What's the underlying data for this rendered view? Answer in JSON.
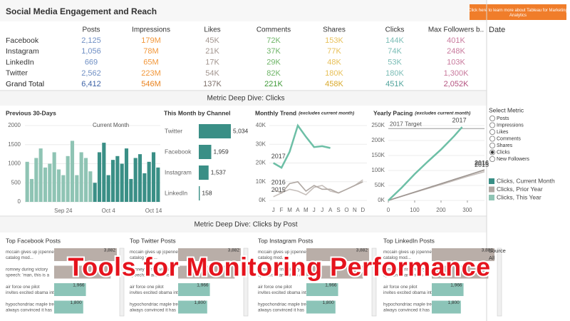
{
  "header": {
    "title": "Social Media Engagement and Reach",
    "button": "Click here to learn more about Tableau for Marketing Analytics",
    "date_label": "Date"
  },
  "table": {
    "columns": [
      "Posts",
      "Impressions",
      "Likes",
      "Comments",
      "Shares",
      "Clicks",
      "Max Followers b.."
    ],
    "column_colors": [
      "#6f8fc4",
      "#f2973a",
      "#a39690",
      "#6fb568",
      "#e8c15a",
      "#7bbdb6",
      "#c97a9d"
    ],
    "total_colors": [
      "#3d62a6",
      "#e8811c",
      "#7d706a",
      "#3f9a38",
      "#d9a92a",
      "#4fa39b",
      "#b4527f"
    ],
    "rows": [
      {
        "label": "Facebook",
        "cells": [
          "2,125",
          "179M",
          "45K",
          "72K",
          "153K",
          "144K",
          "401K"
        ]
      },
      {
        "label": "Instagram",
        "cells": [
          "1,056",
          "78M",
          "21K",
          "37K",
          "77K",
          "74K",
          "248K"
        ]
      },
      {
        "label": "LinkedIn",
        "cells": [
          "669",
          "65M",
          "17K",
          "29K",
          "48K",
          "53K",
          "103K"
        ]
      },
      {
        "label": "Twitter",
        "cells": [
          "2,562",
          "223M",
          "54K",
          "82K",
          "180K",
          "180K",
          "1,300K"
        ]
      },
      {
        "label": "Grand Total",
        "cells": [
          "6,412",
          "546M",
          "137K",
          "221K",
          "458K",
          "451K",
          "2,052K"
        ]
      }
    ]
  },
  "sections": [
    "Metric Deep Dive: Clicks",
    "Metric Deep Dive: Clicks by Post"
  ],
  "chart_data": [
    {
      "type": "bar",
      "title": "Previous 30-Days",
      "annotation": "Current Month",
      "categories": [
        null,
        null,
        null,
        null,
        null,
        null,
        null,
        null,
        "Sep 24",
        null,
        null,
        null,
        null,
        null,
        null,
        null,
        null,
        null,
        "Oct 4",
        null,
        null,
        null,
        null,
        null,
        null,
        null,
        null,
        null,
        "Oct 14",
        null
      ],
      "series": [
        {
          "color": "#8fc4b4",
          "values": [
            1050,
            600,
            1150,
            1400,
            900,
            1000,
            1300,
            850,
            700,
            1200,
            1600,
            700,
            1300,
            1150,
            800,
            null,
            null,
            null,
            null,
            null,
            null,
            null,
            null,
            null,
            null,
            null,
            null,
            null,
            null,
            null
          ]
        },
        {
          "color": "#3a8f86",
          "values": [
            null,
            null,
            null,
            null,
            null,
            null,
            null,
            null,
            null,
            null,
            null,
            null,
            null,
            null,
            null,
            500,
            1300,
            1550,
            700,
            1100,
            1200,
            1000,
            1400,
            600,
            1150,
            1250,
            750,
            1050,
            1300,
            900
          ]
        }
      ],
      "ylim": [
        0,
        2000
      ],
      "yticks": [
        0,
        500,
        1000,
        1500,
        2000
      ],
      "grid": true
    },
    {
      "type": "hbar",
      "title": "This Month by Channel",
      "categories": [
        "Twitter",
        "Facebook",
        "Instagram",
        "LinkedIn"
      ],
      "values": [
        5034,
        1959,
        1537,
        158
      ],
      "value_labels": [
        "5,034",
        "1,959",
        "1,537",
        "158"
      ],
      "color": "#3a8f86"
    },
    {
      "type": "line",
      "title": "Monthly Trend",
      "subtitle": "(excludes current month)",
      "categories": [
        "J",
        "F",
        "M",
        "A",
        "M",
        "J",
        "J",
        "A",
        "S",
        "O",
        "N",
        "D"
      ],
      "series": [
        {
          "name": "2017",
          "color": "#6dbfa6",
          "values": [
            20000,
            17500,
            26000,
            40000,
            34000,
            28500,
            29000,
            28000,
            null,
            null,
            null,
            null
          ]
        },
        {
          "name": "2016",
          "color": "#b0a8a3",
          "values": [
            6000,
            4000,
            9000,
            10000,
            5000,
            8000,
            6000,
            6000,
            4000,
            6000,
            8000,
            10000
          ]
        },
        {
          "name": "2015",
          "color": "#c6bfbb",
          "values": [
            2000,
            4000,
            6000,
            5000,
            3000,
            7000,
            8000,
            5000,
            4000,
            6000,
            8000,
            11000
          ]
        }
      ],
      "ylim": [
        0,
        40000
      ],
      "yticks": [
        {
          "value": 0,
          "label": "0K"
        },
        {
          "value": 10000,
          "label": "10K"
        },
        {
          "value": 20000,
          "label": "20K"
        },
        {
          "value": 30000,
          "label": "30K"
        },
        {
          "value": 40000,
          "label": "40K"
        }
      ],
      "grid": true
    },
    {
      "type": "line",
      "title": "Yearly Pacing",
      "subtitle": "(excludes current month)",
      "target": 240000,
      "target_label": "2017 Target",
      "series": [
        {
          "name": "2017",
          "color": "#6dbfa6",
          "x": [
            0,
            50,
            100,
            150,
            200,
            250,
            280
          ],
          "values": [
            0,
            42000,
            88000,
            130000,
            170000,
            215000,
            245000
          ]
        },
        {
          "name": "2016",
          "color": "#9c948f",
          "x": [
            0,
            100,
            200,
            300,
            365
          ],
          "values": [
            0,
            28000,
            56000,
            84000,
            102000
          ]
        },
        {
          "name": "2015",
          "color": "#c6bfbb",
          "x": [
            0,
            100,
            200,
            300,
            365
          ],
          "values": [
            0,
            27000,
            53000,
            80000,
            96000
          ]
        }
      ],
      "xlim": [
        0,
        365
      ],
      "xticks": [
        0,
        100,
        200,
        300
      ],
      "ylim": [
        0,
        250000
      ],
      "yticks": [
        {
          "value": 0,
          "label": "0K"
        },
        {
          "value": 50000,
          "label": "50K"
        },
        {
          "value": 100000,
          "label": "100K"
        },
        {
          "value": 150000,
          "label": "150K"
        },
        {
          "value": 200000,
          "label": "200K"
        },
        {
          "value": 250000,
          "label": "250K"
        }
      ],
      "grid": true
    }
  ],
  "select_metric": {
    "title": "Select Metric",
    "options": [
      "Posts",
      "Impressions",
      "Likes",
      "Comments",
      "Shares",
      "Clicks",
      "New Followers"
    ],
    "selected": 5
  },
  "legend": [
    {
      "name": "Clicks, Current Month",
      "color": "#3a8f86"
    },
    {
      "name": "Clicks, Prior Year",
      "color": "#b0a8a3"
    },
    {
      "name": "Clicks, This Year",
      "color": "#8fc4b4"
    }
  ],
  "top_posts": [
    {
      "title": "Top Facebook Posts",
      "items": [
        {
          "text": "mccain gives up jcpenney catalog mod...",
          "value": 3882,
          "label": "3,882",
          "color": "#b9aea8"
        },
        {
          "text": "romney during victory speech: 'man, this is a weak field'",
          "value": 3500,
          "color": "#b9aea8"
        },
        {
          "text": "air force one pilot invites excited obama into cockpit",
          "value": 1966,
          "label": "1,966",
          "color": "#8cc4b8"
        },
        {
          "text": "hypochondriac maple tree always convinced it has asian",
          "value": 1800,
          "label": "1,800",
          "color": "#8cc4b8"
        }
      ]
    },
    {
      "title": "Top Twitter Posts",
      "items": [
        {
          "text": "mccain gives up jcpenney catalog mod...",
          "value": 3882,
          "label": "3,882",
          "color": "#b9aea8"
        },
        {
          "text": "romney during victory speech: 'man, this is a weak field'",
          "value": 3500,
          "color": "#b9aea8"
        },
        {
          "text": "air force one pilot invites excited obama into cockpit",
          "value": 1966,
          "label": "1,966",
          "color": "#8cc4b8"
        },
        {
          "text": "hypochondriac maple tree always convinced it has asian",
          "value": 1800,
          "label": "1,800",
          "color": "#8cc4b8"
        }
      ]
    },
    {
      "title": "Top Instagram Posts",
      "items": [
        {
          "text": "mccain gives up jcpenney catalog mod...",
          "value": 3882,
          "label": "3,882",
          "color": "#b9aea8"
        },
        {
          "text": "romney during victory speech: 'man, this is a weak field'",
          "value": 3500,
          "color": "#b9aea8"
        },
        {
          "text": "air force one pilot invites excited obama into cockpit",
          "value": 1966,
          "label": "1,966",
          "color": "#8cc4b8"
        },
        {
          "text": "hypochondriac maple tree always convinced it has asian",
          "value": 1800,
          "label": "1,800",
          "color": "#8cc4b8"
        }
      ]
    },
    {
      "title": "Top LinkedIn Posts",
      "items": [
        {
          "text": "mccain gives up jcpenney catalog mod...",
          "value": 3882,
          "label": "3,882",
          "color": "#b9aea8"
        },
        {
          "text": "romney during victory speech: 'man, this is a weak field'",
          "value": 3500,
          "color": "#b9aea8"
        },
        {
          "text": "air force one pilot invites excited obama into cockpit",
          "value": 1966,
          "label": "1,966",
          "color": "#8cc4b8"
        },
        {
          "text": "hypochondriac maple tree always convinced it has asian",
          "value": 1800,
          "label": "1,800",
          "color": "#8cc4b8"
        }
      ]
    }
  ],
  "source": {
    "title": "Source",
    "value": "All"
  },
  "overlay": "Tools for Monitoring Performance"
}
